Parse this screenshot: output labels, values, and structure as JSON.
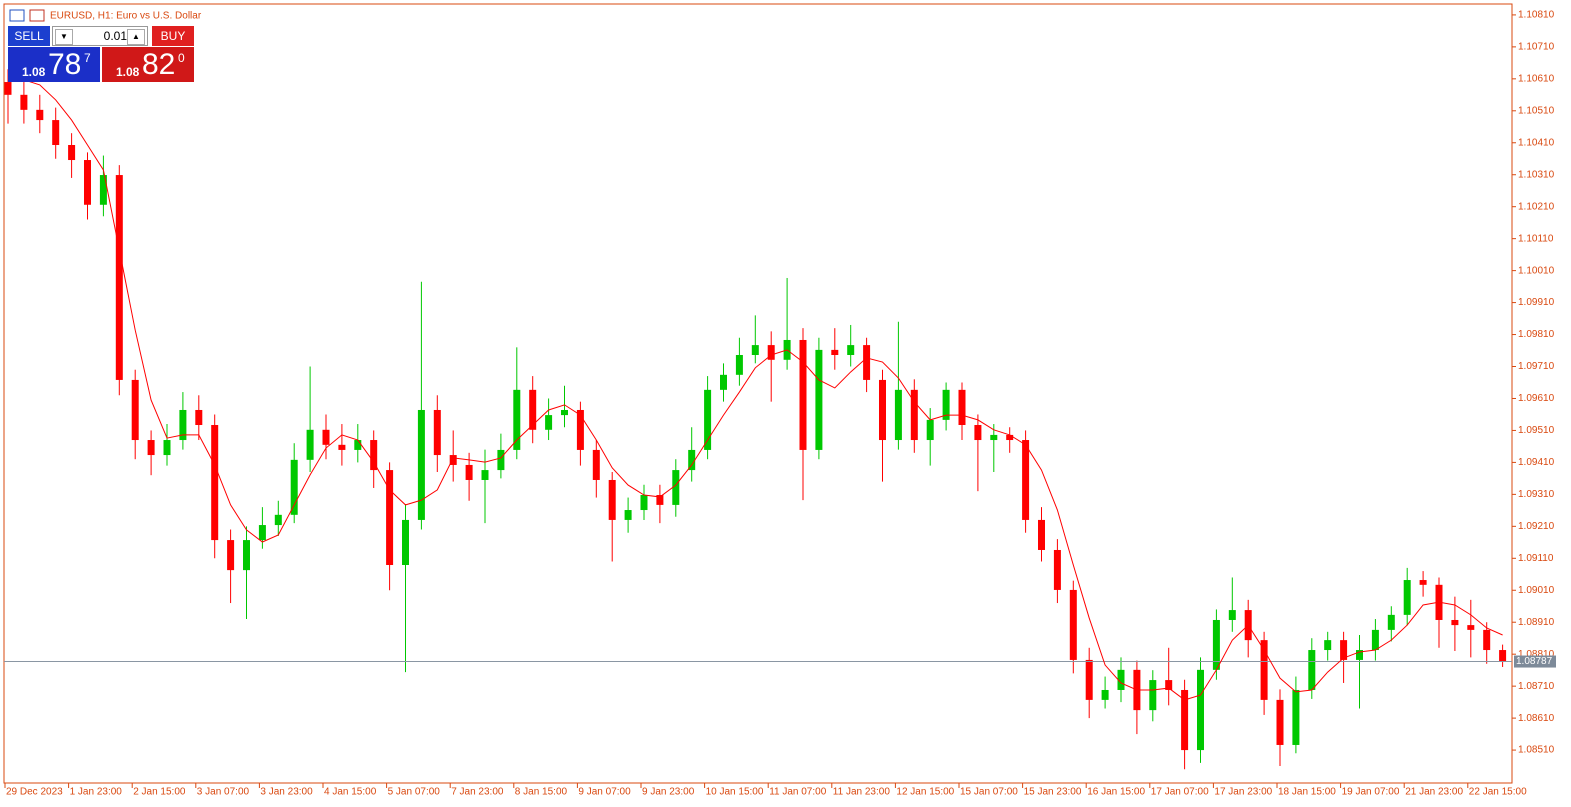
{
  "header": {
    "title": "EURUSD, H1:  Euro vs U.S. Dollar"
  },
  "trade_panel": {
    "sell": "SELL",
    "buy": "BUY",
    "volume": "0.01",
    "bid": {
      "big": "1.08",
      "pips": "78",
      "point": "7"
    },
    "ask": {
      "big": "1.08",
      "pips": "82",
      "point": "0"
    }
  },
  "chart_data": {
    "type": "candlestick",
    "up_color": "#00c800",
    "down_color": "#ff0000",
    "grid": false,
    "ylim": [
      1.08407,
      1.10841
    ],
    "yticks": [
      {
        "value": 1.1081,
        "label": "1.10810"
      },
      {
        "value": 1.1071,
        "label": "1.10710"
      },
      {
        "value": 1.1061,
        "label": "1.10610"
      },
      {
        "value": 1.1051,
        "label": "1.10510"
      },
      {
        "value": 1.1041,
        "label": "1.10410"
      },
      {
        "value": 1.1031,
        "label": "1.10310"
      },
      {
        "value": 1.1021,
        "label": "1.10210"
      },
      {
        "value": 1.1011,
        "label": "1.10110"
      },
      {
        "value": 1.1001,
        "label": "1.10010"
      },
      {
        "value": 1.0991,
        "label": "1.09910"
      },
      {
        "value": 1.0981,
        "label": "1.09810"
      },
      {
        "value": 1.0971,
        "label": "1.09710"
      },
      {
        "value": 1.0961,
        "label": "1.09610"
      },
      {
        "value": 1.0951,
        "label": "1.09510"
      },
      {
        "value": 1.0941,
        "label": "1.09410"
      },
      {
        "value": 1.0931,
        "label": "1.09310"
      },
      {
        "value": 1.0921,
        "label": "1.09210"
      },
      {
        "value": 1.0911,
        "label": "1.09110"
      },
      {
        "value": 1.0901,
        "label": "1.09010"
      },
      {
        "value": 1.0891,
        "label": "1.08910"
      },
      {
        "value": 1.0881,
        "label": "1.08810"
      },
      {
        "value": 1.0871,
        "label": "1.08710"
      },
      {
        "value": 1.0861,
        "label": "1.08610"
      },
      {
        "value": 1.0851,
        "label": "1.08510"
      }
    ],
    "x_tick_labels": [
      "29 Dec 2023",
      "1 Jan 23:00",
      "2 Jan 15:00",
      "3 Jan 07:00",
      "3 Jan 23:00",
      "4 Jan 15:00",
      "5 Jan 07:00",
      "7 Jan 23:00",
      "8 Jan 15:00",
      "9 Jan 07:00",
      "9 Jan 23:00",
      "10 Jan 15:00",
      "11 Jan 07:00",
      "11 Jan 23:00",
      "12 Jan 15:00",
      "15 Jan 07:00",
      "15 Jan 23:00",
      "16 Jan 15:00",
      "17 Jan 07:00",
      "17 Jan 23:00",
      "18 Jan 15:00",
      "19 Jan 07:00",
      "21 Jan 23:00",
      "22 Jan 15:00"
    ],
    "bid": 1.08787,
    "candles": [
      [
        1.106,
        1.1064,
        1.1047,
        1.1056
      ],
      [
        1.1056,
        1.106,
        1.1047,
        1.10513
      ],
      [
        1.10513,
        1.1056,
        1.1044,
        1.10481
      ],
      [
        1.10481,
        1.1052,
        1.1036,
        1.10403
      ],
      [
        1.10403,
        1.1044,
        1.103,
        1.10356
      ],
      [
        1.10356,
        1.1038,
        1.1017,
        1.10216
      ],
      [
        1.10216,
        1.1037,
        1.1018,
        1.10309
      ],
      [
        1.10309,
        1.1034,
        1.0962,
        1.09668
      ],
      [
        1.09668,
        1.097,
        1.0942,
        1.0948
      ],
      [
        1.0948,
        1.0951,
        1.0937,
        1.09433
      ],
      [
        1.09433,
        1.0953,
        1.094,
        1.0948
      ],
      [
        1.0948,
        1.0963,
        1.0945,
        1.09574
      ],
      [
        1.09574,
        1.0962,
        1.0948,
        1.09527
      ],
      [
        1.09527,
        1.0956,
        1.0911,
        1.09167
      ],
      [
        1.09167,
        1.092,
        1.0897,
        1.09073
      ],
      [
        1.09073,
        1.0921,
        1.0892,
        1.09167
      ],
      [
        1.09167,
        1.0927,
        1.0914,
        1.09214
      ],
      [
        1.09214,
        1.0929,
        1.0918,
        1.09246
      ],
      [
        1.09246,
        1.0947,
        1.0922,
        1.09418
      ],
      [
        1.09418,
        1.0971,
        1.0938,
        1.09512
      ],
      [
        1.09512,
        1.0956,
        1.0942,
        1.09465
      ],
      [
        1.09465,
        1.0953,
        1.094,
        1.09449
      ],
      [
        1.09449,
        1.0953,
        1.0941,
        1.0948
      ],
      [
        1.0948,
        1.0951,
        1.0933,
        1.09386
      ],
      [
        1.09386,
        1.0941,
        1.0901,
        1.09089
      ],
      [
        1.09089,
        1.0928,
        1.08754,
        1.0923
      ],
      [
        1.0923,
        1.09975,
        1.092,
        1.09574
      ],
      [
        1.09574,
        1.0962,
        1.0938,
        1.09433
      ],
      [
        1.09433,
        1.0951,
        1.0935,
        1.09402
      ],
      [
        1.09402,
        1.0944,
        1.0929,
        1.09355
      ],
      [
        1.09355,
        1.0945,
        1.0922,
        1.09386
      ],
      [
        1.09386,
        1.095,
        1.0936,
        1.09449
      ],
      [
        1.09449,
        1.0977,
        1.0942,
        1.09637
      ],
      [
        1.09637,
        1.0968,
        1.0947,
        1.09512
      ],
      [
        1.09512,
        1.0961,
        1.0948,
        1.09558
      ],
      [
        1.09558,
        1.0965,
        1.0952,
        1.09574
      ],
      [
        1.09574,
        1.096,
        1.094,
        1.09449
      ],
      [
        1.09449,
        1.0948,
        1.093,
        1.09355
      ],
      [
        1.09355,
        1.0938,
        1.091,
        1.0923
      ],
      [
        1.0923,
        1.093,
        1.0919,
        1.09261
      ],
      [
        1.09261,
        1.0934,
        1.0923,
        1.09308
      ],
      [
        1.09308,
        1.0934,
        1.0922,
        1.09277
      ],
      [
        1.09277,
        1.0942,
        1.0924,
        1.09386
      ],
      [
        1.09386,
        1.0952,
        1.0935,
        1.09449
      ],
      [
        1.09449,
        1.0968,
        1.0942,
        1.09637
      ],
      [
        1.09637,
        1.0972,
        1.096,
        1.09684
      ],
      [
        1.09684,
        1.098,
        1.0965,
        1.09746
      ],
      [
        1.09746,
        1.0987,
        1.0972,
        1.09777
      ],
      [
        1.09777,
        1.0982,
        1.096,
        1.09731
      ],
      [
        1.09731,
        1.09987,
        1.097,
        1.09793
      ],
      [
        1.09793,
        1.0983,
        1.09292,
        1.09449
      ],
      [
        1.09449,
        1.098,
        1.0942,
        1.09762
      ],
      [
        1.09762,
        1.0983,
        1.097,
        1.09746
      ],
      [
        1.09746,
        1.0984,
        1.0971,
        1.09777
      ],
      [
        1.09777,
        1.098,
        1.0963,
        1.09668
      ],
      [
        1.09668,
        1.097,
        1.0935,
        1.0948
      ],
      [
        1.0948,
        1.0985,
        1.0945,
        1.09637
      ],
      [
        1.09637,
        1.0967,
        1.0944,
        1.0948
      ],
      [
        1.0948,
        1.0958,
        1.094,
        1.09543
      ],
      [
        1.09543,
        1.0966,
        1.0951,
        1.09637
      ],
      [
        1.09637,
        1.0966,
        1.0948,
        1.09527
      ],
      [
        1.09527,
        1.0956,
        1.0932,
        1.0948
      ],
      [
        1.0948,
        1.0953,
        1.0938,
        1.09496
      ],
      [
        1.09496,
        1.0952,
        1.0944,
        1.0948
      ],
      [
        1.0948,
        1.0951,
        1.0919,
        1.0923
      ],
      [
        1.0923,
        1.0927,
        1.091,
        1.09136
      ],
      [
        1.09136,
        1.0917,
        1.0897,
        1.09011
      ],
      [
        1.09011,
        1.0904,
        1.0875,
        1.08792
      ],
      [
        1.08792,
        1.0883,
        1.0861,
        1.08667
      ],
      [
        1.08667,
        1.0874,
        1.0864,
        1.08698
      ],
      [
        1.08698,
        1.088,
        1.0866,
        1.08761
      ],
      [
        1.08761,
        1.0879,
        1.0856,
        1.08635
      ],
      [
        1.08635,
        1.0876,
        1.086,
        1.08729
      ],
      [
        1.08729,
        1.0883,
        1.0865,
        1.08698
      ],
      [
        1.08698,
        1.0873,
        1.0845,
        1.0851
      ],
      [
        1.0851,
        1.088,
        1.0847,
        1.08761
      ],
      [
        1.08761,
        1.0895,
        1.0873,
        1.08917
      ],
      [
        1.08917,
        1.0905,
        1.0888,
        1.08948
      ],
      [
        1.08948,
        1.0898,
        1.088,
        1.08854
      ],
      [
        1.08854,
        1.0888,
        1.0862,
        1.08667
      ],
      [
        1.08667,
        1.087,
        1.0846,
        1.08526
      ],
      [
        1.08526,
        1.0874,
        1.085,
        1.08698
      ],
      [
        1.08698,
        1.0886,
        1.0867,
        1.08823
      ],
      [
        1.08823,
        1.0888,
        1.0879,
        1.08854
      ],
      [
        1.08854,
        1.0888,
        1.0872,
        1.08792
      ],
      [
        1.08792,
        1.0887,
        1.0864,
        1.08823
      ],
      [
        1.08823,
        1.0892,
        1.0879,
        1.08886
      ],
      [
        1.08886,
        1.0896,
        1.0885,
        1.08933
      ],
      [
        1.08933,
        1.0908,
        1.089,
        1.09042
      ],
      [
        1.09042,
        1.0907,
        1.0899,
        1.09027
      ],
      [
        1.09027,
        1.0905,
        1.0883,
        1.08917
      ],
      [
        1.08917,
        1.0899,
        1.0882,
        1.08901
      ],
      [
        1.08901,
        1.0898,
        1.088,
        1.08886
      ],
      [
        1.08886,
        1.0891,
        1.0878,
        1.08823
      ],
      [
        1.08823,
        1.0884,
        1.0877,
        1.08787
      ]
    ],
    "ma": {
      "color": "#ff0000",
      "values": [
        1.10622,
        1.10607,
        1.10591,
        1.10544,
        1.10481,
        1.10403,
        1.10325,
        1.10075,
        1.09824,
        1.09605,
        1.09486,
        1.09496,
        1.09496,
        1.09402,
        1.09277,
        1.09199,
        1.09161,
        1.09183,
        1.09277,
        1.09371,
        1.09455,
        1.09496,
        1.0948,
        1.09411,
        1.09324,
        1.09277,
        1.09292,
        1.09324,
        1.09424,
        1.09418,
        1.09411,
        1.09424,
        1.0948,
        1.09527,
        1.09574,
        1.0959,
        1.09558,
        1.0948,
        1.09393,
        1.09339,
        1.09308,
        1.09302,
        1.09339,
        1.09402,
        1.0948,
        1.09558,
        1.0963,
        1.09706,
        1.09746,
        1.09762,
        1.09724,
        1.09668,
        1.09643,
        1.09693,
        1.09737,
        1.09724,
        1.09674,
        1.09599,
        1.09543,
        1.09558,
        1.09558,
        1.09543,
        1.09512,
        1.09496,
        1.09465,
        1.09386,
        1.09261,
        1.09089,
        1.08923,
        1.08776,
        1.0872,
        1.08698,
        1.08698,
        1.08704,
        1.08667,
        1.08682,
        1.08761,
        1.08854,
        1.08901,
        1.08823,
        1.08735,
        1.08692,
        1.08698,
        1.08754,
        1.08798,
        1.08817,
        1.08823,
        1.08854,
        1.08901,
        1.08964,
        1.08973,
        1.08964,
        1.08933,
        1.08892,
        1.0887
      ]
    }
  }
}
